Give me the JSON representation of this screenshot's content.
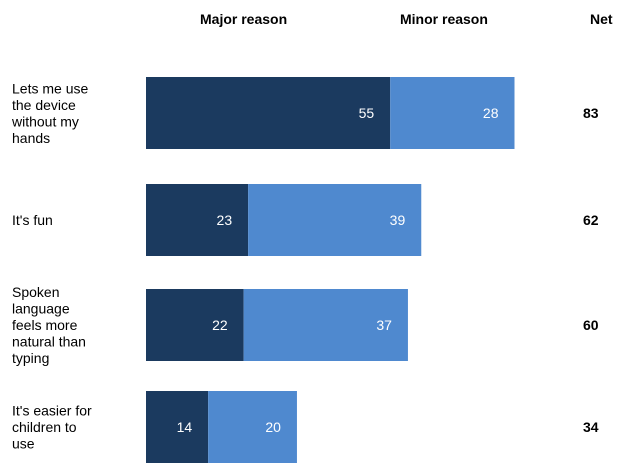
{
  "chart_data": {
    "type": "bar",
    "orientation": "horizontal",
    "stacked": true,
    "headers": {
      "major": "Major reason",
      "minor": "Minor reason",
      "net": "Net"
    },
    "categories": [
      [
        "Lets me use",
        "the device",
        "without my",
        "hands"
      ],
      [
        "It's fun"
      ],
      [
        "Spoken",
        "language",
        "feels more",
        "natural than",
        "typing"
      ],
      [
        "It's easier for",
        "children to",
        "use"
      ]
    ],
    "series": [
      {
        "name": "Major reason",
        "values": [
          55,
          23,
          22,
          14
        ]
      },
      {
        "name": "Minor reason",
        "values": [
          28,
          39,
          37,
          20
        ]
      }
    ],
    "net": [
      83,
      62,
      60,
      34
    ],
    "colors": {
      "major": "#1b3a5f",
      "minor": "#4f89cf"
    },
    "xlim": [
      0,
      100
    ],
    "grid": false,
    "legend": "top"
  }
}
